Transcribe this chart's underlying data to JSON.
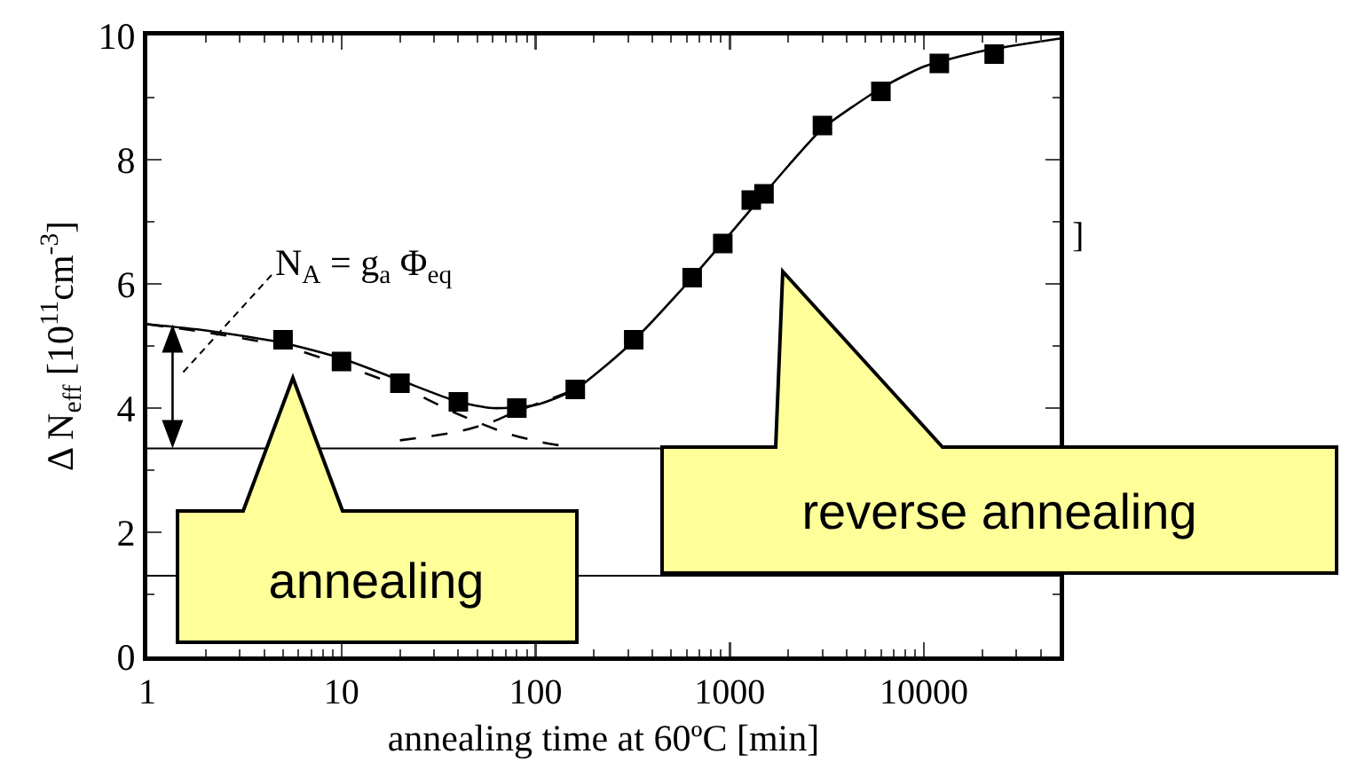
{
  "chart_data": {
    "type": "scatter",
    "xlabel": "annealing time at 60ºC [min]",
    "ylabel": "Δ N$_{eff}$ [10$^{11}$cm$^{-3}$]",
    "log": "x",
    "xlim": [
      1,
      50000
    ],
    "ylim": [
      0,
      10
    ],
    "xticks": [
      1,
      {
        "value": 2,
        "label": null
      },
      {
        "value": 3,
        "label": null
      },
      {
        "value": 4,
        "label": null
      },
      {
        "value": 5,
        "label": null
      },
      {
        "value": 6,
        "label": null
      },
      {
        "value": 7,
        "label": null
      },
      {
        "value": 8,
        "label": null
      },
      {
        "value": 9,
        "label": null
      },
      10,
      {
        "value": 20,
        "label": null
      },
      {
        "value": 30,
        "label": null
      },
      {
        "value": 40,
        "label": null
      },
      {
        "value": 50,
        "label": null
      },
      {
        "value": 60,
        "label": null
      },
      {
        "value": 70,
        "label": null
      },
      {
        "value": 80,
        "label": null
      },
      {
        "value": 90,
        "label": null
      },
      100,
      {
        "value": 200,
        "label": null
      },
      {
        "value": 300,
        "label": null
      },
      {
        "value": 400,
        "label": null
      },
      {
        "value": 500,
        "label": null
      },
      {
        "value": 600,
        "label": null
      },
      {
        "value": 700,
        "label": null
      },
      {
        "value": 800,
        "label": null
      },
      {
        "value": 900,
        "label": null
      },
      1000,
      {
        "value": 2000,
        "label": null
      },
      {
        "value": 3000,
        "label": null
      },
      {
        "value": 4000,
        "label": null
      },
      {
        "value": 5000,
        "label": null
      },
      {
        "value": 6000,
        "label": null
      },
      {
        "value": 7000,
        "label": null
      },
      {
        "value": 8000,
        "label": null
      },
      {
        "value": 9000,
        "label": null
      },
      10000,
      {
        "value": 20000,
        "label": null
      },
      {
        "value": 30000,
        "label": null
      },
      {
        "value": 40000,
        "label": null
      }
    ],
    "yticks": [
      0,
      {
        "value": 1,
        "label": null
      },
      2,
      {
        "value": 3,
        "label": null
      },
      4,
      {
        "value": 5,
        "label": null
      },
      6,
      {
        "value": 7,
        "label": null
      },
      8,
      {
        "value": 9,
        "label": null
      },
      10
    ],
    "grid": false,
    "series": [
      {
        "type": "scatter",
        "color": "#000000",
        "marker": "square",
        "x": [
          5,
          10,
          20,
          40,
          80,
          160,
          320,
          640,
          920,
          1290,
          1500,
          3000,
          6000,
          12000,
          23000
        ],
        "values": [
          5.1,
          4.75,
          4.4,
          4.1,
          4.0,
          4.3,
          5.1,
          6.1,
          6.65,
          7.35,
          7.45,
          8.55,
          9.1,
          9.55,
          9.7
        ]
      },
      {
        "type": "line",
        "color": "#000000",
        "marker": "none",
        "line_style": "solid",
        "x": [
          1,
          2,
          5,
          10,
          20,
          40,
          60,
          100,
          160,
          300,
          600,
          1000,
          2000,
          3000,
          6000,
          10000,
          20000,
          50000
        ],
        "values": [
          5.35,
          5.25,
          5.05,
          4.8,
          4.45,
          4.1,
          4.0,
          4.05,
          4.3,
          5.0,
          6.0,
          6.8,
          7.9,
          8.5,
          9.15,
          9.5,
          9.75,
          9.95
        ]
      },
      {
        "type": "line",
        "color": "#000000",
        "marker": "none",
        "line_style": "dashed",
        "x": [
          1,
          2,
          5,
          10,
          20,
          40,
          70,
          100,
          150
        ],
        "values": [
          5.35,
          5.22,
          5.0,
          4.7,
          4.35,
          3.9,
          3.6,
          3.47,
          3.37
        ]
      },
      {
        "type": "line",
        "color": "#000000",
        "marker": "none",
        "line_style": "dashed",
        "x": [
          20,
          40,
          60,
          80,
          120,
          160
        ],
        "values": [
          3.48,
          3.62,
          3.78,
          3.95,
          4.15,
          4.3
        ]
      }
    ],
    "ref_lines": [
      {
        "axis": "y",
        "value": 3.35,
        "color": "#000000"
      },
      {
        "axis": "y",
        "value": 1.3,
        "color": "#000000"
      }
    ],
    "annotations": [
      "N$_{A}$ = g$_{a}$ Φ$_{eq}$",
      "annealing",
      "reverse annealing",
      "]"
    ]
  }
}
